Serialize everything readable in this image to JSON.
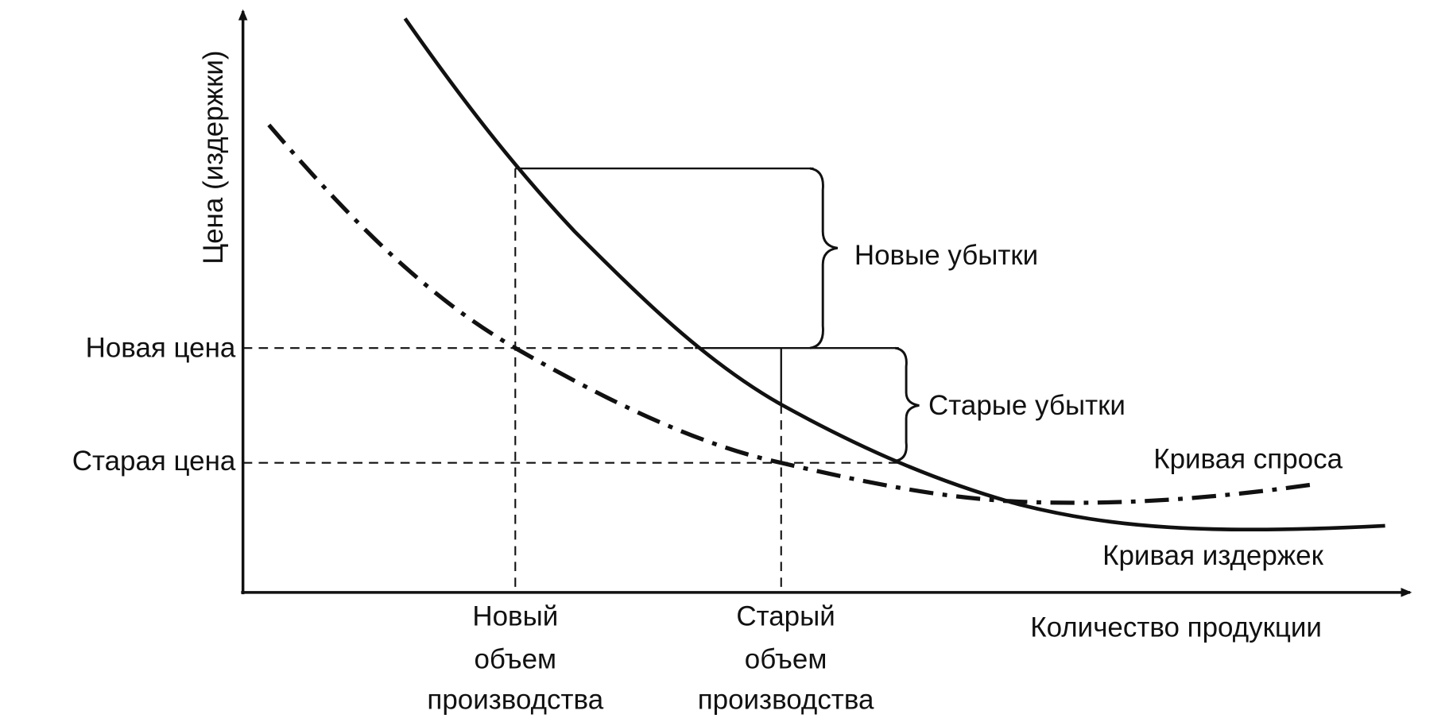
{
  "axes": {
    "y_label": "Цена (издержки)",
    "x_label": "Количество продукции"
  },
  "price_levels": {
    "new": "Новая цена",
    "old": "Старая цена"
  },
  "volumes": {
    "new": [
      "Новый",
      "объем",
      "производства"
    ],
    "old": [
      "Старый",
      "объем",
      "производства"
    ]
  },
  "losses": {
    "new": "Новые убытки",
    "old": "Старые убытки"
  },
  "curves": {
    "demand": "Кривая спроса",
    "cost": "Кривая издержек"
  }
}
